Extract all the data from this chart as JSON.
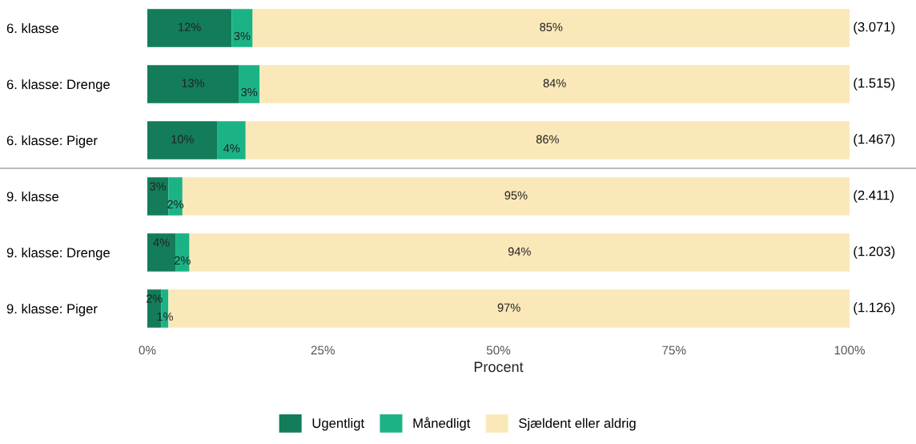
{
  "chart_data": {
    "type": "bar",
    "orientation": "horizontal",
    "stacked": true,
    "data_labels": true,
    "categories": [
      "6. klasse",
      "6. klasse: Drenge",
      "6. klasse: Piger",
      "9. klasse",
      "9. klasse: Drenge",
      "9. klasse: Piger"
    ],
    "series": [
      {
        "name": "Ugentligt",
        "color": "#137c5b",
        "values": [
          12,
          13,
          10,
          3,
          4,
          2
        ],
        "value_labels": [
          "12%",
          "13%",
          "10%",
          "3%",
          "4%",
          "2%"
        ]
      },
      {
        "name": "Månedligt",
        "color": "#1bb386",
        "values": [
          3,
          3,
          4,
          2,
          2,
          1
        ],
        "value_labels": [
          "3%",
          "3%",
          "4%",
          "2%",
          "2%",
          "1%"
        ]
      },
      {
        "name": "Sjældent eller aldrig",
        "color": "#fbe8b9",
        "values": [
          85,
          84,
          86,
          95,
          94,
          97
        ],
        "value_labels": [
          "85%",
          "84%",
          "86%",
          "95%",
          "94%",
          "97%"
        ]
      }
    ],
    "xlabel": "Procent",
    "xlim": [
      0,
      100
    ],
    "xticks": [
      {
        "value": 0,
        "label": "0%"
      },
      {
        "value": 25,
        "label": "25%"
      },
      {
        "value": 50,
        "label": "50%"
      },
      {
        "value": 75,
        "label": "75%"
      },
      {
        "value": 100,
        "label": "100%"
      }
    ],
    "annotations": [
      "(3.071)",
      "(1.515)",
      "(1.467)",
      "(2.411)",
      "(1.203)",
      "(1.126)"
    ],
    "legend": "bottom",
    "grid": false
  }
}
